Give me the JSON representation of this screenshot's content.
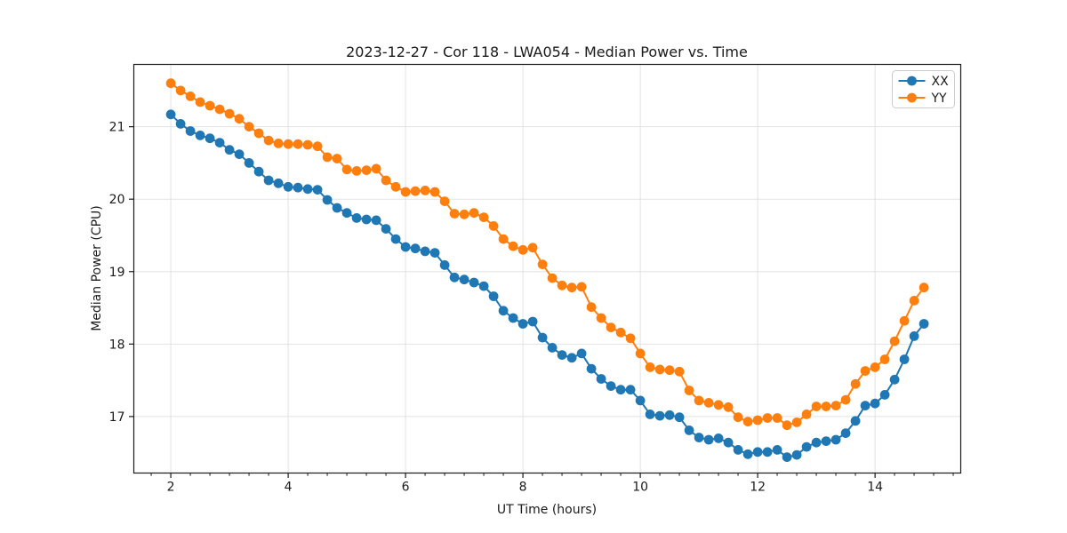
{
  "chart_data": {
    "type": "line",
    "title": "2023-12-27 - Cor 118 - LWA054 - Median Power vs. Time",
    "xlabel": "UT Time (hours)",
    "ylabel": "Median Power (CPU)",
    "xlim": [
      1.37,
      15.46
    ],
    "ylim": [
      16.22,
      21.86
    ],
    "xticks": [
      2,
      4,
      6,
      8,
      10,
      12,
      14
    ],
    "yticks": [
      17,
      18,
      19,
      20,
      21
    ],
    "x_minor_step": 0.3333,
    "grid": true,
    "legend_position": "upper right",
    "x": [
      2,
      2.1667,
      2.3333,
      2.5,
      2.6667,
      2.8333,
      3,
      3.1667,
      3.3333,
      3.5,
      3.6667,
      3.8333,
      4,
      4.1667,
      4.3333,
      4.5,
      4.6667,
      4.8333,
      5,
      5.1667,
      5.3333,
      5.5,
      5.6667,
      5.8333,
      6,
      6.1667,
      6.3333,
      6.5,
      6.6667,
      6.8333,
      7,
      7.1667,
      7.3333,
      7.5,
      7.6667,
      7.8333,
      8,
      8.1667,
      8.3333,
      8.5,
      8.6667,
      8.8333,
      9,
      9.1667,
      9.3333,
      9.5,
      9.6667,
      9.8333,
      10,
      10.1667,
      10.3333,
      10.5,
      10.6667,
      10.8333,
      11,
      11.1667,
      11.3333,
      11.5,
      11.6667,
      11.8333,
      12,
      12.1667,
      12.3333,
      12.5,
      12.6667,
      12.8333,
      13,
      13.1667,
      13.3333,
      13.5,
      13.6667,
      13.8333,
      14,
      14.1667,
      14.3333,
      14.5,
      14.6667,
      14.8333
    ],
    "series": [
      {
        "name": "XX",
        "color": "#1f77b4",
        "values": [
          21.17,
          21.04,
          20.94,
          20.88,
          20.84,
          20.78,
          20.68,
          20.62,
          20.5,
          20.38,
          20.26,
          20.22,
          20.17,
          20.16,
          20.14,
          20.13,
          19.99,
          19.88,
          19.81,
          19.74,
          19.72,
          19.71,
          19.59,
          19.45,
          19.34,
          19.32,
          19.28,
          19.26,
          19.09,
          18.92,
          18.89,
          18.85,
          18.8,
          18.66,
          18.46,
          18.36,
          18.28,
          18.31,
          18.09,
          17.95,
          17.85,
          17.81,
          17.87,
          17.66,
          17.52,
          17.42,
          17.37,
          17.37,
          17.22,
          17.03,
          17.01,
          17.02,
          16.99,
          16.81,
          16.71,
          16.68,
          16.7,
          16.64,
          16.54,
          16.48,
          16.51,
          16.51,
          16.54,
          16.44,
          16.47,
          16.58,
          16.64,
          16.66,
          16.68,
          16.77,
          16.94,
          17.15,
          17.18,
          17.3,
          17.51,
          17.79,
          18.11,
          18.28
        ]
      },
      {
        "name": "YY",
        "color": "#ff7f0e",
        "values": [
          21.6,
          21.5,
          21.42,
          21.34,
          21.29,
          21.24,
          21.18,
          21.11,
          21.0,
          20.91,
          20.81,
          20.77,
          20.76,
          20.76,
          20.75,
          20.73,
          20.58,
          20.56,
          20.41,
          20.39,
          20.4,
          20.42,
          20.26,
          20.17,
          20.1,
          20.11,
          20.12,
          20.1,
          19.97,
          19.8,
          19.79,
          19.81,
          19.75,
          19.63,
          19.45,
          19.35,
          19.3,
          19.33,
          19.1,
          18.91,
          18.81,
          18.78,
          18.79,
          18.51,
          18.36,
          18.23,
          18.16,
          18.08,
          17.87,
          17.68,
          17.65,
          17.64,
          17.62,
          17.36,
          17.22,
          17.19,
          17.16,
          17.13,
          16.99,
          16.93,
          16.95,
          16.98,
          16.98,
          16.88,
          16.92,
          17.03,
          17.14,
          17.14,
          17.15,
          17.23,
          17.45,
          17.63,
          17.68,
          17.79,
          18.04,
          18.32,
          18.6,
          18.78
        ]
      }
    ]
  }
}
